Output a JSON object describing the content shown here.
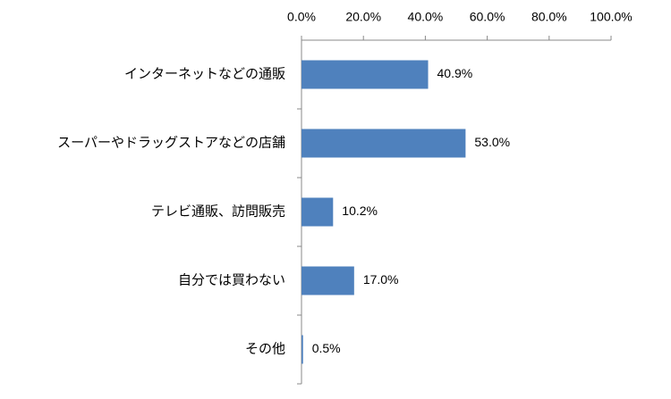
{
  "chart_data": {
    "type": "bar",
    "orientation": "horizontal",
    "categories": [
      "インターネットなどの通販",
      "スーパーやドラッグストアなどの店舗",
      "テレビ通販、訪問販売",
      "自分では買わない",
      "その他"
    ],
    "values": [
      40.9,
      53.0,
      10.2,
      17.0,
      0.5
    ],
    "value_labels": [
      "40.9%",
      "53.0%",
      "10.2%",
      "17.0%",
      "0.5%"
    ],
    "color": "#4f81bd",
    "xlim": [
      0,
      100
    ],
    "xticks": [
      {
        "value": 0,
        "label": "0.0%"
      },
      {
        "value": 20,
        "label": "20.0%"
      },
      {
        "value": 40,
        "label": "40.0%"
      },
      {
        "value": 60,
        "label": "60.0%"
      },
      {
        "value": 80,
        "label": "80.0%"
      },
      {
        "value": 100,
        "label": "100.0%"
      }
    ],
    "grid": false
  }
}
